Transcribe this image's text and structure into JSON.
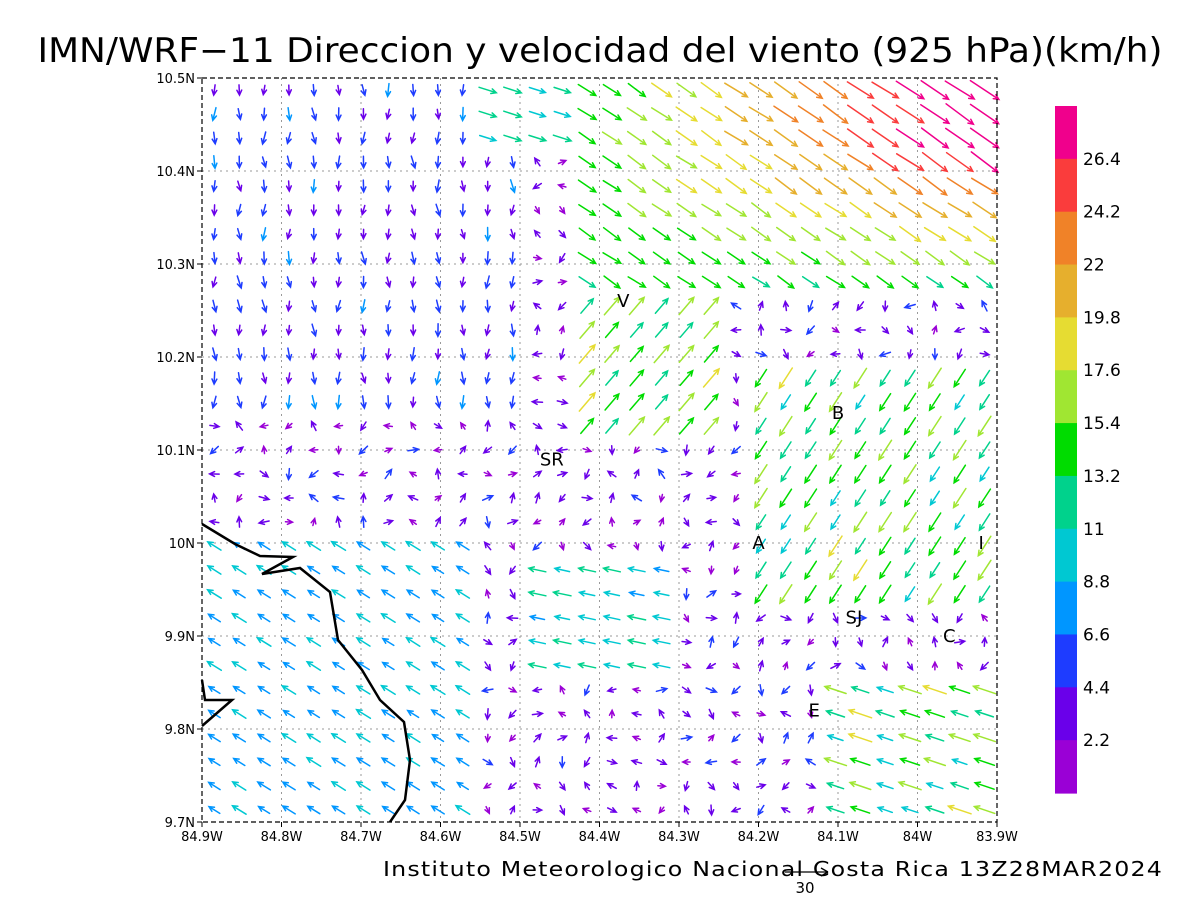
{
  "title": "IMN/WRF−11 Direccion y velocidad del viento (925 hPa)(km/h)",
  "footer": "Instituto Meteorologico Nacional Costa Rica 13Z28MAR2024",
  "reference_vector": {
    "value": "30"
  },
  "map": {
    "lon_range": [
      -84.9,
      -83.9
    ],
    "lat_range": [
      9.7,
      10.5
    ],
    "grid": "dotted",
    "x_ticks": [
      "84.9W",
      "84.8W",
      "84.7W",
      "84.6W",
      "84.5W",
      "84.4W",
      "84.3W",
      "84.2W",
      "84.1W",
      "84W",
      "83.9W"
    ],
    "y_ticks": [
      "9.7N",
      "9.8N",
      "9.9N",
      "10N",
      "10.1N",
      "10.2N",
      "10.3N",
      "10.4N",
      "10.5N"
    ],
    "places": [
      {
        "label": "V",
        "lon": -84.37,
        "lat": 10.26
      },
      {
        "label": "SR",
        "lon": -84.46,
        "lat": 10.09
      },
      {
        "label": "B",
        "lon": -84.1,
        "lat": 10.14
      },
      {
        "label": "A",
        "lon": -84.2,
        "lat": 10.0
      },
      {
        "label": "I",
        "lon": -83.92,
        "lat": 10.0
      },
      {
        "label": "SJ",
        "lon": -84.08,
        "lat": 9.92
      },
      {
        "label": "C",
        "lon": -83.96,
        "lat": 9.9
      },
      {
        "label": "E",
        "lon": -84.13,
        "lat": 9.82
      }
    ]
  },
  "colorbar": {
    "labels": [
      "2.2",
      "4.4",
      "6.6",
      "8.8",
      "11",
      "13.2",
      "15.4",
      "17.6",
      "19.8",
      "22",
      "24.2",
      "26.4"
    ],
    "colors": [
      "#9a00d6",
      "#6a00ea",
      "#1e3cff",
      "#0096ff",
      "#00c8d2",
      "#00d28c",
      "#00dc00",
      "#a0e632",
      "#e6dc32",
      "#e6af2d",
      "#f08228",
      "#fa3c3c",
      "#f0008c"
    ]
  },
  "chart_data": {
    "type": "vector_field",
    "units": "km/h",
    "level": "925 hPa",
    "regions": [
      {
        "area": "northeast (lat 10.3–10.5, lon -84.4 to -83.9)",
        "direction": "toward SE",
        "speed_kmh": [
          15,
          28
        ]
      },
      {
        "area": "southwest coast (lat 9.7–10.0, lon -84.9 to -84.6)",
        "direction": "toward NW",
        "speed_kmh": [
          6,
          11
        ]
      },
      {
        "area": "central interior",
        "direction": "variable",
        "speed_kmh": [
          1,
          5
        ]
      },
      {
        "area": "east of B and north of SJ (lat 9.9–10.2, lon -84.2 to -84.0)",
        "direction": "toward SW",
        "speed_kmh": [
          12,
          19
        ]
      }
    ]
  }
}
